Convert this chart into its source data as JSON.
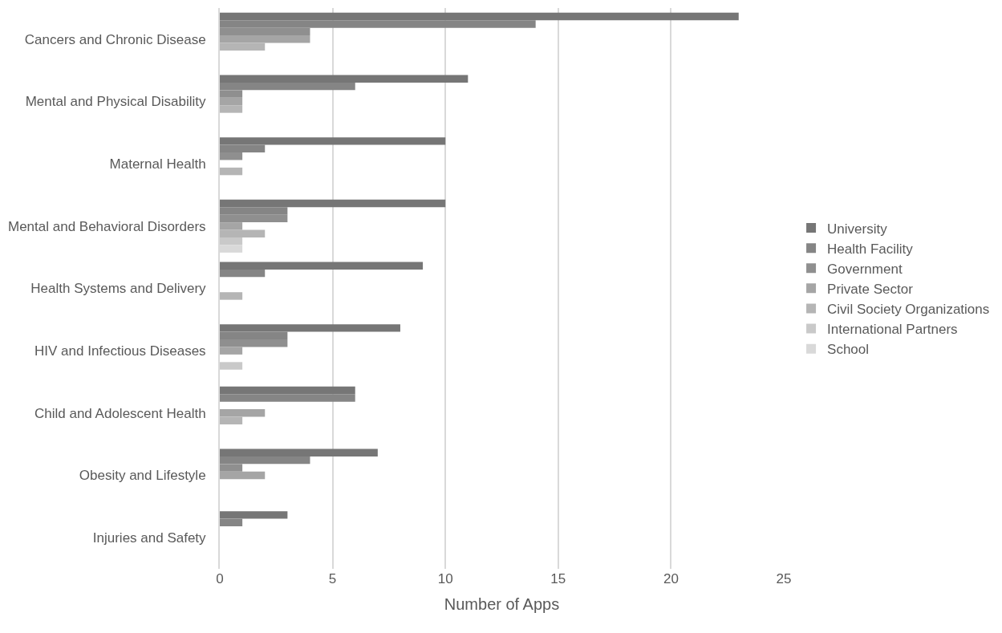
{
  "chart_data": {
    "type": "bar",
    "orientation": "horizontal",
    "xlabel": "Number of Apps",
    "categories": [
      "Cancers and Chronic Disease",
      "Mental and Physical Disability",
      "Maternal Health",
      "Mental and Behavioral Disorders",
      "Health Systems and Delivery",
      "HIV and Infectious Diseases",
      "Child and Adolescent Health",
      "Obesity and Lifestyle",
      "Injuries and Safety"
    ],
    "series": [
      {
        "name": "University",
        "color": "#767676",
        "values": [
          23,
          11,
          10,
          10,
          9,
          8,
          6,
          7,
          3
        ]
      },
      {
        "name": "Health Facility",
        "color": "#858585",
        "values": [
          14,
          6,
          2,
          3,
          2,
          3,
          6,
          4,
          1
        ]
      },
      {
        "name": "Government",
        "color": "#8f8f8f",
        "values": [
          4,
          1,
          1,
          3,
          0,
          3,
          0,
          1,
          0
        ]
      },
      {
        "name": "Private Sector",
        "color": "#a5a5a5",
        "values": [
          4,
          1,
          0,
          1,
          0,
          1,
          2,
          2,
          0
        ]
      },
      {
        "name": "Civil Society Organizations",
        "color": "#b5b5b5",
        "values": [
          2,
          1,
          1,
          2,
          1,
          0,
          1,
          0,
          0
        ]
      },
      {
        "name": "International Partners",
        "color": "#c9c9c9",
        "values": [
          0,
          0,
          0,
          1,
          0,
          1,
          0,
          0,
          0
        ]
      },
      {
        "name": "School",
        "color": "#d9d9d9",
        "values": [
          0,
          0,
          0,
          1,
          0,
          0,
          0,
          0,
          0
        ]
      }
    ],
    "xlim": [
      0,
      25
    ],
    "xticks": [
      0,
      5,
      10,
      15,
      20,
      25
    ],
    "grid": "x",
    "legend": "right"
  }
}
